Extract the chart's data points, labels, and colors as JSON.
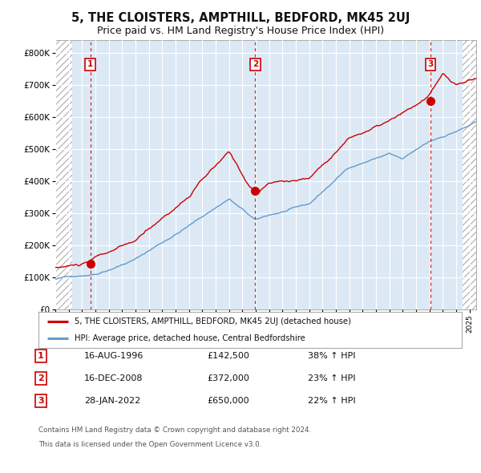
{
  "title": "5, THE CLOISTERS, AMPTHILL, BEDFORD, MK45 2UJ",
  "subtitle": "Price paid vs. HM Land Registry's House Price Index (HPI)",
  "legend_line1": "5, THE CLOISTERS, AMPTHILL, BEDFORD, MK45 2UJ (detached house)",
  "legend_line2": "HPI: Average price, detached house, Central Bedfordshire",
  "footer1": "Contains HM Land Registry data © Crown copyright and database right 2024.",
  "footer2": "This data is licensed under the Open Government Licence v3.0.",
  "transactions": [
    {
      "num": 1,
      "date": "16-AUG-1996",
      "price": 142500,
      "pct": "38%",
      "year": 1996.62
    },
    {
      "num": 2,
      "date": "16-DEC-2008",
      "price": 372000,
      "pct": "23%",
      "year": 2008.96
    },
    {
      "num": 3,
      "date": "28-JAN-2022",
      "price": 650000,
      "pct": "22%",
      "year": 2022.08
    }
  ],
  "xlim": [
    1994.0,
    2025.5
  ],
  "ylim": [
    0,
    840000
  ],
  "yticks": [
    0,
    100000,
    200000,
    300000,
    400000,
    500000,
    600000,
    700000,
    800000
  ],
  "ytick_labels": [
    "£0",
    "£100K",
    "£200K",
    "£300K",
    "£400K",
    "£500K",
    "£600K",
    "£700K",
    "£800K"
  ],
  "bg_color": "#dce9f5",
  "grid_color": "#ffffff",
  "red_line_color": "#cc0000",
  "blue_line_color": "#6699cc",
  "dot_color": "#cc0000",
  "vline_color": "#cc0000",
  "title_fontsize": 10.5,
  "subtitle_fontsize": 9.0,
  "hatch_left_end": 1995.25,
  "hatch_right_start": 2024.5
}
